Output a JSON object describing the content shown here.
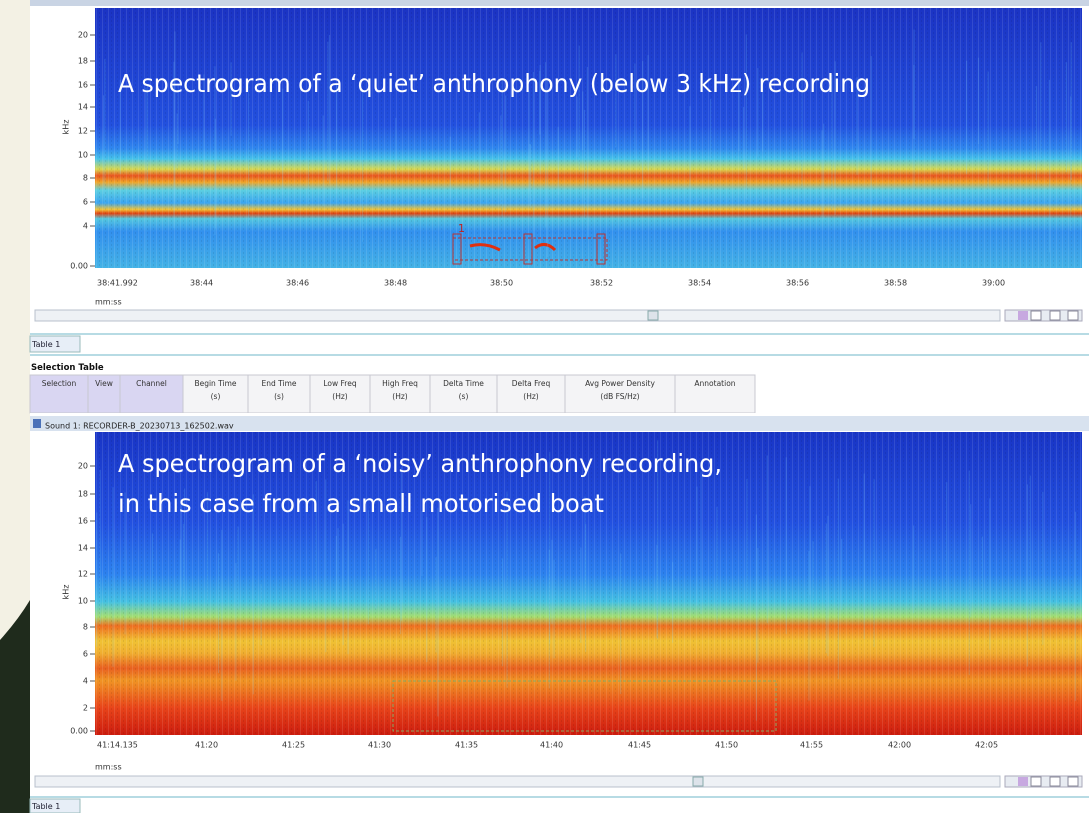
{
  "panels": [
    {
      "caption_lines": [
        "A spectrogram of a ‘quiet’ anthrophony (below 3 kHz) recording"
      ],
      "y_axis_label": "kHz",
      "y_ticks": [
        "20",
        "18",
        "16",
        "14",
        "12",
        "10",
        "8",
        "6",
        "4",
        "0.00"
      ],
      "x_ticks": [
        "38:41.992",
        "38:44",
        "38:46",
        "38:48",
        "38:50",
        "38:52",
        "38:54",
        "38:56",
        "38:58",
        "39:00"
      ],
      "x_axis_label": "mm:ss",
      "selection_label": "1",
      "tab": "Table 1",
      "table_title": "Selection Table",
      "columns": [
        {
          "name": "Selection"
        },
        {
          "name": "View"
        },
        {
          "name": "Channel"
        },
        {
          "name": "Begin Time",
          "unit": "(s)"
        },
        {
          "name": "End Time",
          "unit": "(s)"
        },
        {
          "name": "Low Freq",
          "unit": "(Hz)"
        },
        {
          "name": "High Freq",
          "unit": "(Hz)"
        },
        {
          "name": "Delta Time",
          "unit": "(s)"
        },
        {
          "name": "Delta Freq",
          "unit": "(Hz)"
        },
        {
          "name": "Avg Power Density",
          "unit": "(dB FS/Hz)"
        },
        {
          "name": "Annotation"
        }
      ]
    },
    {
      "window_title": "Sound 1: RECORDER-B_20230713_162502.wav",
      "caption_lines": [
        "A spectrogram of a ‘noisy’ anthrophony recording,",
        "in this case from a small motorised boat"
      ],
      "y_axis_label": "kHz",
      "y_ticks": [
        "20",
        "18",
        "16",
        "14",
        "12",
        "10",
        "8",
        "6",
        "4",
        "2",
        "0.00"
      ],
      "x_ticks": [
        "41:14.135",
        "41:20",
        "41:25",
        "41:30",
        "41:35",
        "41:40",
        "41:45",
        "41:50",
        "41:55",
        "42:00",
        "42:05"
      ],
      "x_axis_label": "mm:ss",
      "tab": "Table 1"
    }
  ]
}
